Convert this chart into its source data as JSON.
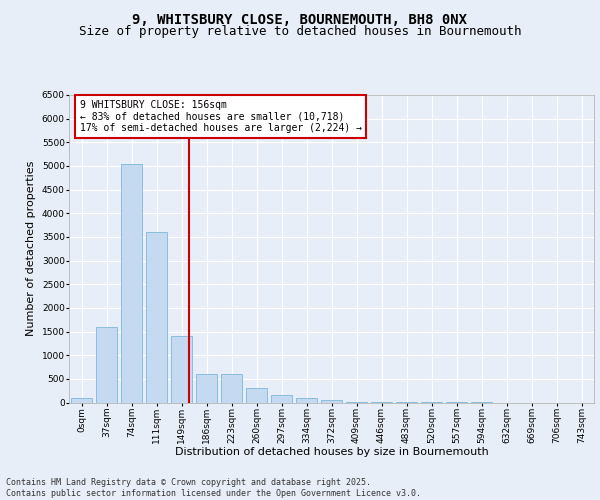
{
  "title1": "9, WHITSBURY CLOSE, BOURNEMOUTH, BH8 0NX",
  "title2": "Size of property relative to detached houses in Bournemouth",
  "xlabel": "Distribution of detached houses by size in Bournemouth",
  "ylabel": "Number of detached properties",
  "categories": [
    "0sqm",
    "37sqm",
    "74sqm",
    "111sqm",
    "149sqm",
    "186sqm",
    "223sqm",
    "260sqm",
    "297sqm",
    "334sqm",
    "372sqm",
    "409sqm",
    "446sqm",
    "483sqm",
    "520sqm",
    "557sqm",
    "594sqm",
    "632sqm",
    "669sqm",
    "706sqm",
    "743sqm"
  ],
  "values": [
    100,
    1600,
    5050,
    3600,
    1400,
    600,
    600,
    310,
    155,
    105,
    55,
    20,
    10,
    5,
    2,
    1,
    1,
    0,
    0,
    0,
    0
  ],
  "bar_color": "#c5d9f0",
  "bar_edge_color": "#6baed6",
  "vline_color": "#cc0000",
  "vline_x": 4.3,
  "annotation_text": "9 WHITSBURY CLOSE: 156sqm\n← 83% of detached houses are smaller (10,718)\n17% of semi-detached houses are larger (2,224) →",
  "annotation_box_color": "#cc0000",
  "footer_text": "Contains HM Land Registry data © Crown copyright and database right 2025.\nContains public sector information licensed under the Open Government Licence v3.0.",
  "ylim": [
    0,
    6500
  ],
  "yticks": [
    0,
    500,
    1000,
    1500,
    2000,
    2500,
    3000,
    3500,
    4000,
    4500,
    5000,
    5500,
    6000,
    6500
  ],
  "background_color": "#e8eef7",
  "plot_background": "#e8eef7",
  "grid_color": "#ffffff",
  "title_fontsize": 10,
  "subtitle_fontsize": 9,
  "axis_label_fontsize": 8,
  "tick_fontsize": 6.5,
  "footer_fontsize": 6
}
